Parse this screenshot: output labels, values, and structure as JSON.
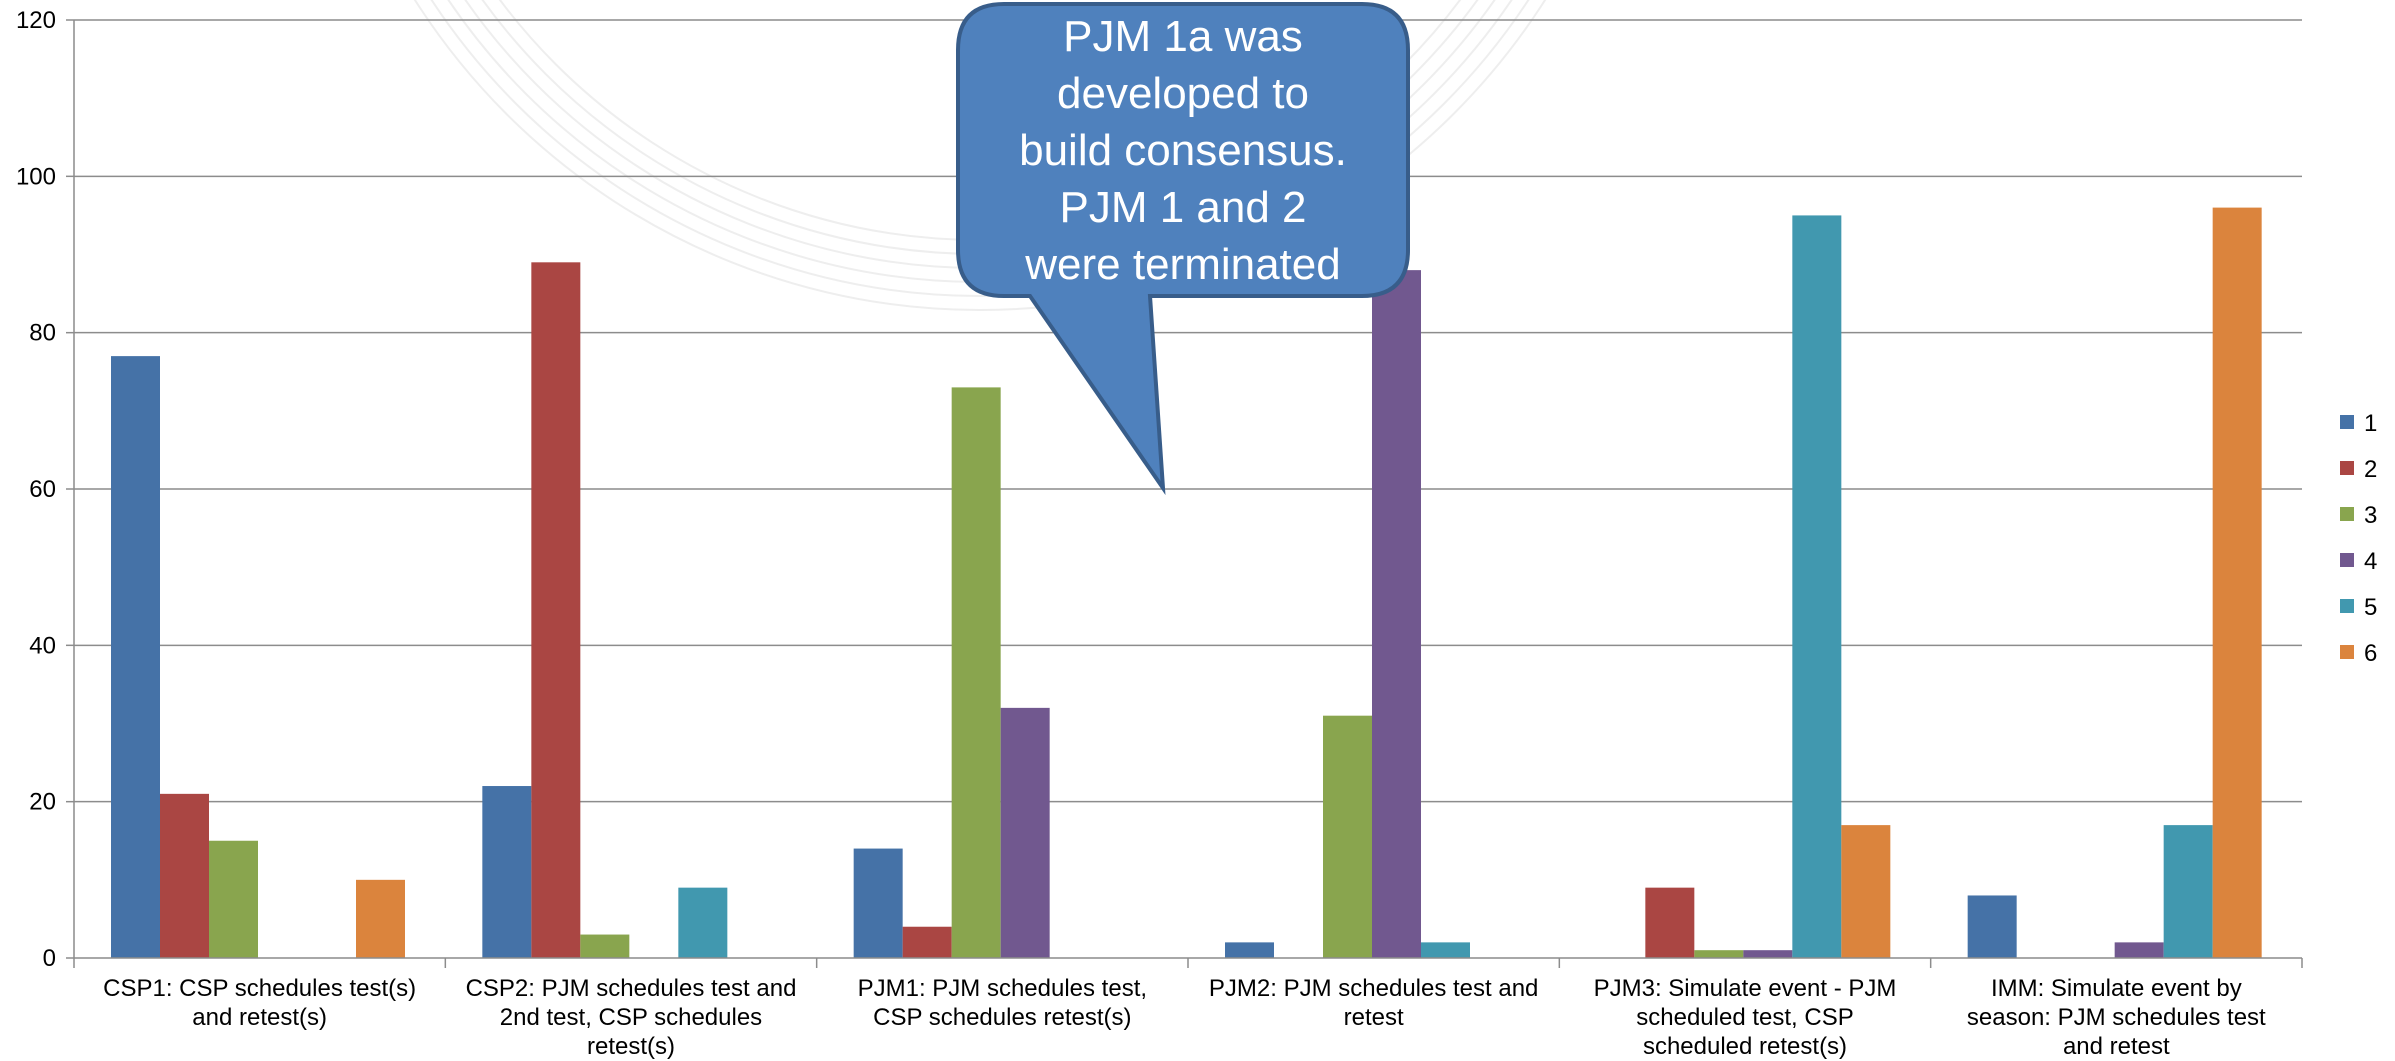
{
  "chart_data": {
    "type": "bar",
    "title": "",
    "xlabel": "",
    "ylabel": "",
    "ylim": [
      0,
      120
    ],
    "yticks": [
      0,
      20,
      40,
      60,
      80,
      100,
      120
    ],
    "grid": true,
    "legend_position": "right",
    "categories": [
      [
        "CSP1: CSP schedules test(s)",
        "and retest(s)"
      ],
      [
        "CSP2: PJM schedules test and",
        "2nd test, CSP schedules",
        "retest(s)"
      ],
      [
        "PJM1: PJM schedules test,",
        "CSP schedules retest(s)"
      ],
      [
        "PJM2: PJM schedules test and",
        "retest"
      ],
      [
        "PJM3: Simulate event - PJM",
        "scheduled test, CSP",
        "scheduled retest(s)"
      ],
      [
        "IMM: Simulate event by",
        "season: PJM schedules test",
        "and retest"
      ]
    ],
    "series": [
      {
        "name": "1",
        "color": "#4572A7",
        "values": [
          77,
          22,
          14,
          2,
          0,
          8
        ]
      },
      {
        "name": "2",
        "color": "#AA4643",
        "values": [
          21,
          89,
          4,
          0,
          9,
          0
        ]
      },
      {
        "name": "3",
        "color": "#89A54E",
        "values": [
          15,
          3,
          73,
          31,
          1,
          0
        ]
      },
      {
        "name": "4",
        "color": "#71588F",
        "values": [
          0,
          0,
          32,
          88,
          1,
          2
        ]
      },
      {
        "name": "5",
        "color": "#4198AF",
        "values": [
          0,
          9,
          0,
          2,
          95,
          17
        ]
      },
      {
        "name": "6",
        "color": "#DB843D",
        "values": [
          10,
          0,
          0,
          0,
          17,
          96
        ]
      }
    ],
    "annotation": {
      "lines": [
        "PJM 1a was",
        "developed to",
        "build consensus.",
        "PJM 1 and 2",
        "were terminated"
      ],
      "fill": "#4F81BD",
      "stroke": "#385D8A"
    }
  }
}
